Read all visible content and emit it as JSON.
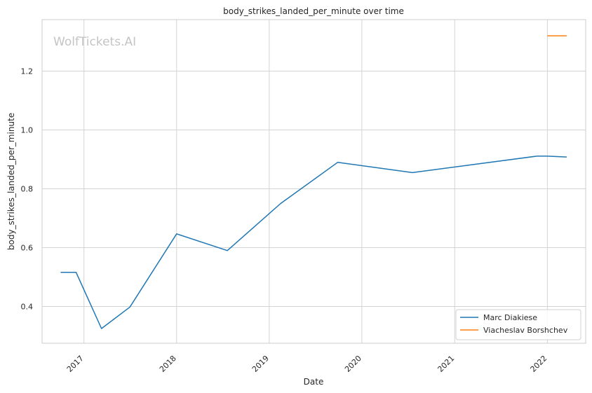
{
  "chart_data": {
    "type": "line",
    "title": "body_strikes_landed_per_minute over time",
    "xlabel": "Date",
    "ylabel": "body_strikes_landed_per_minute",
    "watermark": "WolfTickets.AI",
    "x_ticks": [
      "2017",
      "2018",
      "2019",
      "2020",
      "2021",
      "2022"
    ],
    "y_ticks": [
      "0.4",
      "0.6",
      "0.8",
      "1.0",
      "1.2"
    ],
    "xlim": [
      "2016-07-20",
      "2022-06-01"
    ],
    "ylim": [
      0.275,
      1.375
    ],
    "grid": true,
    "legend_position": "lower right",
    "series": [
      {
        "name": "Marc Diakiese",
        "color": "#1f77b4",
        "x": [
          "2016-10-01",
          "2016-12-01",
          "2017-03-11",
          "2017-07-01",
          "2018-01-01",
          "2018-07-20",
          "2019-02-15",
          "2019-09-28",
          "2020-07-18",
          "2021-11-20",
          "2022-01-01",
          "2022-03-18"
        ],
        "y": [
          0.516,
          0.516,
          0.325,
          0.398,
          0.647,
          0.59,
          0.75,
          0.89,
          0.855,
          0.911,
          0.911,
          0.908
        ]
      },
      {
        "name": "Viacheslav Borshchev",
        "color": "#ff7f0e",
        "x": [
          "2022-01-01",
          "2022-03-18"
        ],
        "y": [
          1.32,
          1.32
        ]
      }
    ]
  }
}
